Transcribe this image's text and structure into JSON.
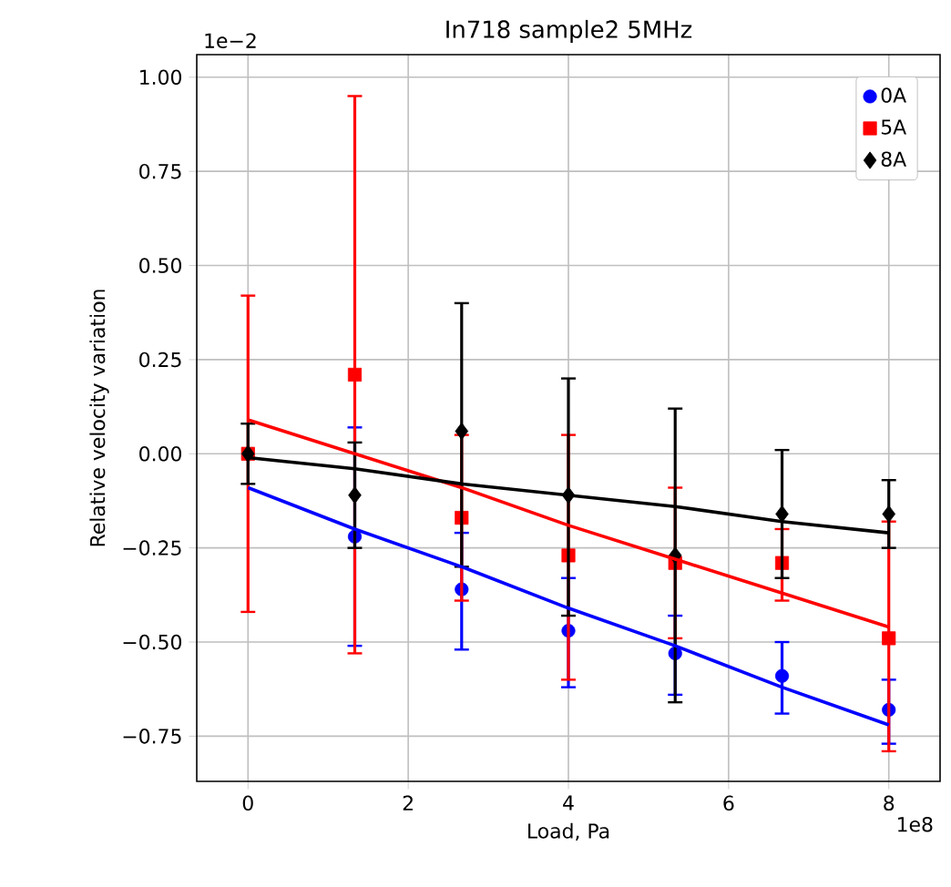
{
  "chart_data": {
    "type": "scatter",
    "title": "In718 sample2 5MHz",
    "xlabel": "Load, Pa",
    "ylabel": "Relative velocity variation",
    "annotations": [
      "1e−2",
      "1e8"
    ],
    "x": [
      0,
      1.333,
      2.667,
      4,
      5.333,
      6.667,
      8
    ],
    "xlim": [
      -0.64,
      8.64
    ],
    "xticks": [
      0,
      2,
      4,
      6,
      8
    ],
    "ylim": [
      -0.87,
      1.06
    ],
    "yticks": [
      {
        "value": -0.75,
        "label": "−0.75"
      },
      {
        "value": -0.5,
        "label": "−0.50"
      },
      {
        "value": -0.25,
        "label": "−0.25"
      },
      {
        "value": 0,
        "label": "0.00"
      },
      {
        "value": 0.25,
        "label": "0.25"
      },
      {
        "value": 0.5,
        "label": "0.50"
      },
      {
        "value": 0.75,
        "label": "0.75"
      },
      {
        "value": 1.0,
        "label": "1.00"
      }
    ],
    "grid": true,
    "legend": "top right",
    "series": [
      {
        "name": "0A",
        "color": "#0000ff",
        "marker": "circle",
        "values": [
          null,
          -0.22,
          -0.36,
          -0.47,
          -0.53,
          -0.59,
          -0.68
        ],
        "errors": [
          null,
          [
            -0.51,
            0.07
          ],
          [
            -0.52,
            -0.21
          ],
          [
            -0.62,
            -0.33
          ],
          [
            -0.64,
            -0.43
          ],
          [
            -0.69,
            -0.5
          ],
          [
            -0.77,
            -0.6
          ]
        ]
      },
      {
        "name": "5A",
        "color": "#ff0000",
        "marker": "square",
        "values": [
          0,
          0.21,
          -0.17,
          -0.27,
          -0.29,
          -0.29,
          -0.49
        ],
        "errors": [
          [
            -0.42,
            0.42
          ],
          [
            -0.53,
            0.95
          ],
          [
            -0.39,
            0.05
          ],
          [
            -0.6,
            0.05
          ],
          [
            -0.49,
            -0.09
          ],
          [
            -0.39,
            -0.2
          ],
          [
            -0.79,
            -0.18
          ]
        ]
      },
      {
        "name": "8A",
        "color": "#000000",
        "marker": "diamond",
        "values": [
          0,
          -0.11,
          0.06,
          -0.11,
          -0.27,
          -0.16,
          -0.16
        ],
        "errors": [
          [
            -0.08,
            0.08
          ],
          [
            -0.25,
            0.03
          ],
          [
            -0.3,
            0.4
          ],
          [
            -0.43,
            0.2
          ],
          [
            -0.66,
            0.12
          ],
          [
            -0.33,
            0.01
          ],
          [
            -0.25,
            -0.07
          ]
        ]
      },
      {
        "type": "line",
        "color": "#0000ff",
        "values": [
          -0.09,
          -0.2,
          -0.3,
          -0.41,
          -0.51,
          -0.62,
          -0.72
        ]
      },
      {
        "type": "line",
        "color": "#ff0000",
        "values": [
          0.09,
          0.0,
          -0.09,
          -0.19,
          -0.28,
          -0.37,
          -0.46
        ]
      },
      {
        "type": "line",
        "color": "#000000",
        "values": [
          -0.01,
          -0.04,
          -0.08,
          -0.11,
          -0.14,
          -0.18,
          -0.21
        ]
      }
    ]
  }
}
